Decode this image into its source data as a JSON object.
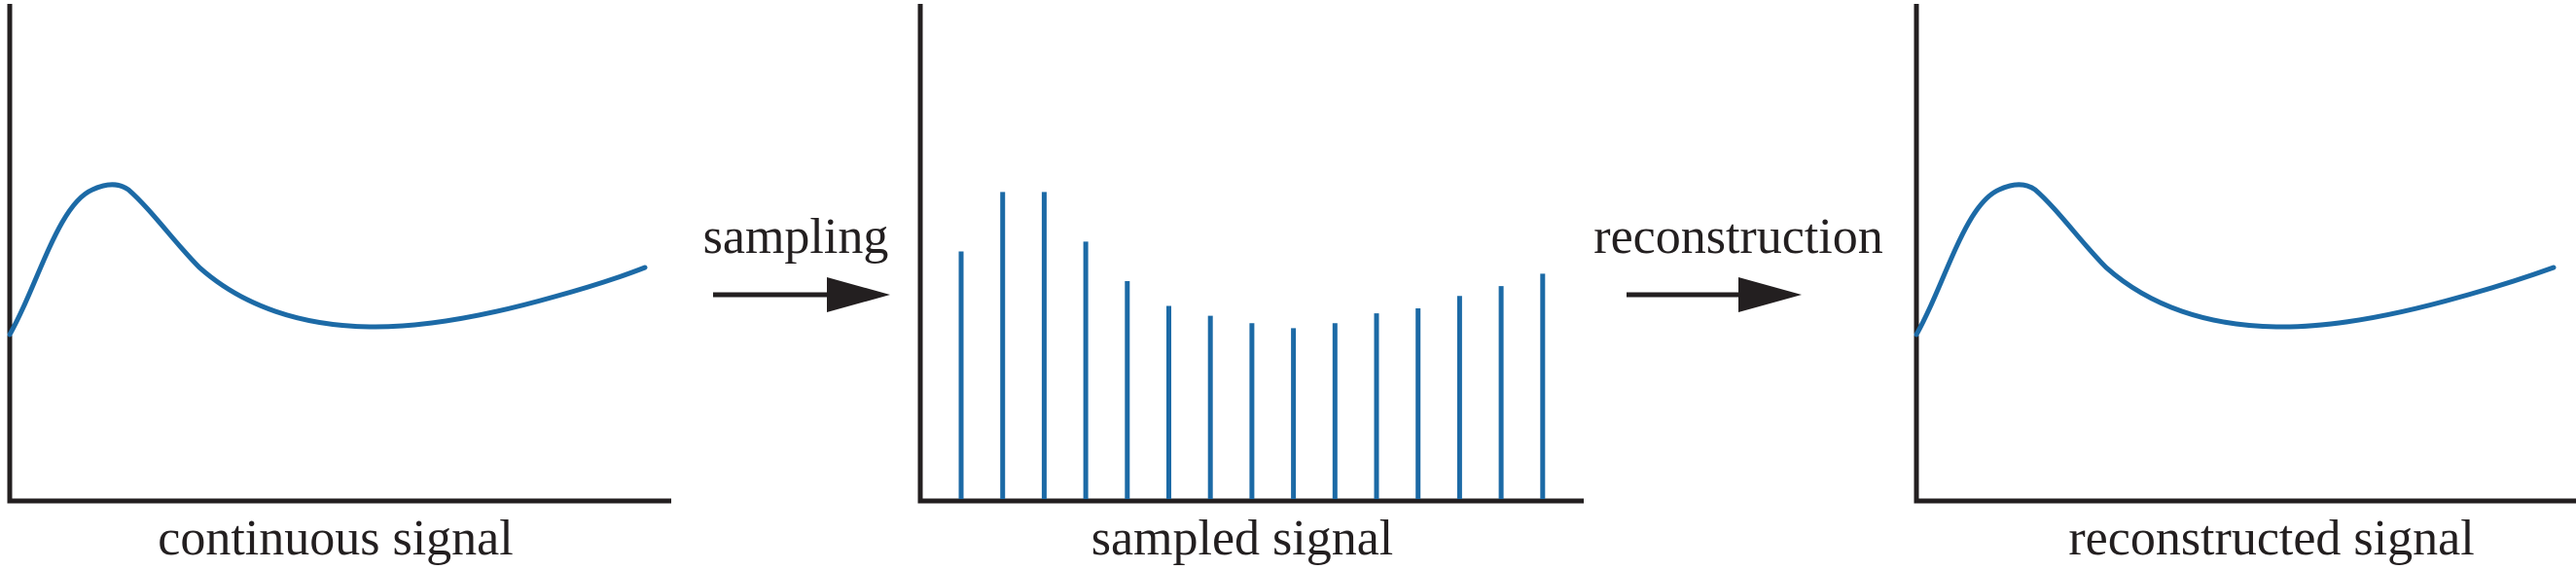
{
  "panels": {
    "continuous": {
      "label": "continuous signal"
    },
    "sampled": {
      "label": "sampled signal",
      "sample_heights": [
        0.5,
        0.62,
        0.62,
        0.52,
        0.44,
        0.39,
        0.37,
        0.355,
        0.345,
        0.355,
        0.375,
        0.385,
        0.41,
        0.43,
        0.455
      ]
    },
    "reconstructed": {
      "label": "reconstructed signal"
    }
  },
  "arrows": {
    "sampling": {
      "label": "sampling"
    },
    "reconstruction": {
      "label": "reconstruction"
    }
  },
  "colors": {
    "signal": "#1c6aa6",
    "axis": "#231f20"
  }
}
